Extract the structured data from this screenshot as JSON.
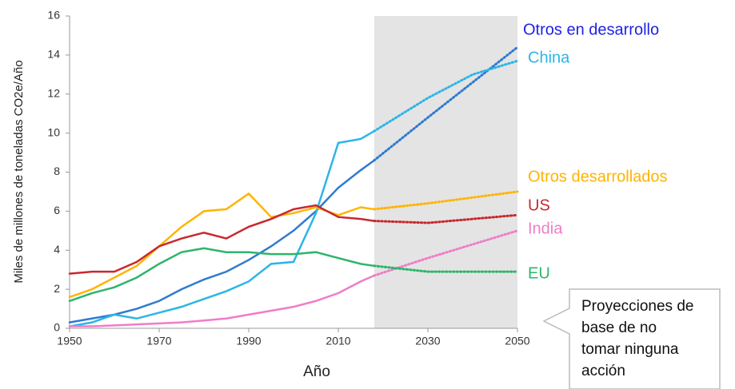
{
  "chart_data": {
    "type": "line",
    "x_label": "Año",
    "y_label": "Miles de millones de toneladas CO2e/Año",
    "x": [
      1950,
      1955,
      1960,
      1965,
      1970,
      1975,
      1980,
      1985,
      1990,
      1995,
      2000,
      2005,
      2010,
      2015,
      2018,
      2030,
      2040,
      2050
    ],
    "projection_range": [
      2018,
      2050
    ],
    "series": [
      {
        "name": "Otros en desarrollo",
        "color": "#2e7bcf",
        "values": [
          0.3,
          0.5,
          0.7,
          1.0,
          1.4,
          2.0,
          2.5,
          2.9,
          3.5,
          4.2,
          5.0,
          6.0,
          7.2,
          8.1,
          8.6,
          10.8,
          12.6,
          14.4
        ]
      },
      {
        "name": "China",
        "color": "#2cb5e8",
        "values": [
          0.1,
          0.3,
          0.7,
          0.5,
          0.8,
          1.1,
          1.5,
          1.9,
          2.4,
          3.3,
          3.4,
          5.9,
          9.5,
          9.7,
          10.1,
          11.8,
          13.0,
          13.7
        ]
      },
      {
        "name": "Otros desarrollados",
        "color": "#ffb400",
        "values": [
          1.6,
          2.0,
          2.6,
          3.2,
          4.2,
          5.2,
          6.0,
          6.1,
          6.9,
          5.7,
          5.9,
          6.2,
          5.8,
          6.2,
          6.1,
          6.4,
          6.7,
          7.0
        ]
      },
      {
        "name": "US",
        "color": "#c8282e",
        "values": [
          2.8,
          2.9,
          2.9,
          3.4,
          4.2,
          4.6,
          4.9,
          4.6,
          5.2,
          5.6,
          6.1,
          6.3,
          5.7,
          5.6,
          5.5,
          5.4,
          5.6,
          5.8
        ]
      },
      {
        "name": "India",
        "color": "#f07cc8",
        "values": [
          0.1,
          0.1,
          0.15,
          0.2,
          0.25,
          0.3,
          0.4,
          0.5,
          0.7,
          0.9,
          1.1,
          1.4,
          1.8,
          2.4,
          2.7,
          3.6,
          4.3,
          5.0
        ]
      },
      {
        "name": "EU",
        "color": "#2db56a",
        "values": [
          1.4,
          1.8,
          2.1,
          2.6,
          3.3,
          3.9,
          4.1,
          3.9,
          3.9,
          3.8,
          3.8,
          3.9,
          3.6,
          3.3,
          3.2,
          2.9,
          2.9,
          2.9
        ]
      }
    ],
    "xlim": [
      1950,
      2050
    ],
    "xticks": [
      1950,
      1970,
      1990,
      2010,
      2030,
      2050
    ],
    "ylim": [
      0,
      16
    ],
    "yticks": [
      0,
      2,
      4,
      6,
      8,
      10,
      12,
      14,
      16
    ],
    "grid": false,
    "annotation": [
      "Proyecciones de",
      "base de no",
      "tomar ninguna",
      "acción"
    ]
  }
}
